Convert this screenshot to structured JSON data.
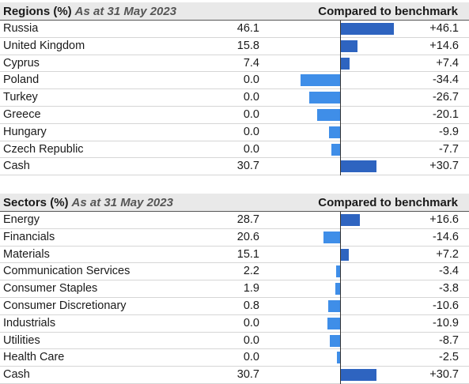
{
  "colors": {
    "positive": "#2e64c0",
    "negative": "#3f8ee8"
  },
  "regions": {
    "title": "Regions (%)",
    "as_at": "As at 31 May 2023",
    "bench_header": "Compared to benchmark",
    "rows": [
      {
        "label": "Russia",
        "value": "46.1",
        "bench_label": "+46.1",
        "bench": 46.1
      },
      {
        "label": "United Kingdom",
        "value": "15.8",
        "bench_label": "+14.6",
        "bench": 14.6
      },
      {
        "label": "Cyprus",
        "value": "7.4",
        "bench_label": "+7.4",
        "bench": 7.4
      },
      {
        "label": "Poland",
        "value": "0.0",
        "bench_label": "-34.4",
        "bench": -34.4
      },
      {
        "label": "Turkey",
        "value": "0.0",
        "bench_label": "-26.7",
        "bench": -26.7
      },
      {
        "label": "Greece",
        "value": "0.0",
        "bench_label": "-20.1",
        "bench": -20.1
      },
      {
        "label": "Hungary",
        "value": "0.0",
        "bench_label": "-9.9",
        "bench": -9.9
      },
      {
        "label": "Czech Republic",
        "value": "0.0",
        "bench_label": "-7.7",
        "bench": -7.7
      },
      {
        "label": "Cash",
        "value": "30.7",
        "bench_label": "+30.7",
        "bench": 30.7
      }
    ]
  },
  "sectors": {
    "title": "Sectors (%)",
    "as_at": "As at 31 May 2023",
    "bench_header": "Compared to benchmark",
    "rows": [
      {
        "label": "Energy",
        "value": "28.7",
        "bench_label": "+16.6",
        "bench": 16.6
      },
      {
        "label": "Financials",
        "value": "20.6",
        "bench_label": "-14.6",
        "bench": -14.6
      },
      {
        "label": "Materials",
        "value": "15.1",
        "bench_label": "+7.2",
        "bench": 7.2
      },
      {
        "label": "Communication Services",
        "value": "2.2",
        "bench_label": "-3.4",
        "bench": -3.4
      },
      {
        "label": "Consumer Staples",
        "value": "1.9",
        "bench_label": "-3.8",
        "bench": -3.8
      },
      {
        "label": "Consumer Discretionary",
        "value": "0.8",
        "bench_label": "-10.6",
        "bench": -10.6
      },
      {
        "label": "Industrials",
        "value": "0.0",
        "bench_label": "-10.9",
        "bench": -10.9
      },
      {
        "label": "Utilities",
        "value": "0.0",
        "bench_label": "-8.7",
        "bench": -8.7
      },
      {
        "label": "Health Care",
        "value": "0.0",
        "bench_label": "-2.5",
        "bench": -2.5
      },
      {
        "label": "Cash",
        "value": "30.7",
        "bench_label": "+30.7",
        "bench": 30.7
      }
    ]
  },
  "chart_data": [
    {
      "type": "bar",
      "title": "Regions (%)",
      "subtitle": "As at 31 May 2023",
      "categories": [
        "Russia",
        "United Kingdom",
        "Cyprus",
        "Poland",
        "Turkey",
        "Greece",
        "Hungary",
        "Czech Republic",
        "Cash"
      ],
      "series": [
        {
          "name": "Regions (%)",
          "values": [
            46.1,
            15.8,
            7.4,
            0.0,
            0.0,
            0.0,
            0.0,
            0.0,
            30.7
          ]
        },
        {
          "name": "Compared to benchmark",
          "values": [
            46.1,
            14.6,
            7.4,
            -34.4,
            -26.7,
            -20.1,
            -9.9,
            -7.7,
            30.7
          ]
        }
      ]
    },
    {
      "type": "bar",
      "title": "Sectors (%)",
      "subtitle": "As at 31 May 2023",
      "categories": [
        "Energy",
        "Financials",
        "Materials",
        "Communication Services",
        "Consumer Staples",
        "Consumer Discretionary",
        "Industrials",
        "Utilities",
        "Health Care",
        "Cash"
      ],
      "series": [
        {
          "name": "Sectors (%)",
          "values": [
            28.7,
            20.6,
            15.1,
            2.2,
            1.9,
            0.8,
            0.0,
            0.0,
            0.0,
            30.7
          ]
        },
        {
          "name": "Compared to benchmark",
          "values": [
            16.6,
            -14.6,
            7.2,
            -3.4,
            -3.8,
            -10.6,
            -10.9,
            -8.7,
            -2.5,
            30.7
          ]
        }
      ]
    }
  ]
}
